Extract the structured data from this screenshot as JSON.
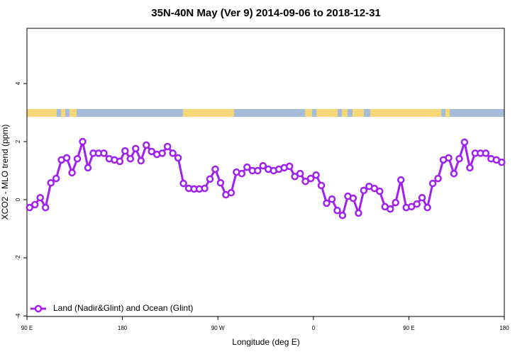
{
  "chart_data": {
    "type": "line",
    "title": "35N-40N May (Ver 9)   2014-09-06 to 2018-12-31",
    "x_label": "Longitude (deg E)",
    "y_label": "XCO2 - MLO trend (ppm)",
    "x": [
      92.5,
      97.5,
      102.5,
      107.5,
      112.5,
      117.5,
      122.5,
      127.5,
      132.5,
      137.5,
      142.5,
      147.5,
      152.5,
      157.5,
      162.5,
      167.5,
      172.5,
      177.5,
      182.5,
      187.5,
      192.5,
      197.5,
      202.5,
      207.5,
      212.5,
      217.5,
      222.5,
      227.5,
      232.5,
      237.5,
      242.5,
      247.5,
      252.5,
      257.5,
      262.5,
      267.5,
      272.5,
      277.5,
      282.5,
      287.5,
      292.5,
      297.5,
      302.5,
      307.5,
      312.5,
      317.5,
      322.5,
      327.5,
      332.5,
      337.5,
      342.5,
      347.5,
      352.5,
      357.5,
      362.5,
      367.5,
      372.5,
      377.5,
      382.5,
      387.5,
      392.5,
      397.5,
      402.5,
      407.5,
      412.5,
      417.5,
      422.5,
      427.5,
      432.5,
      437.5,
      442.5,
      447.5,
      452.5,
      457.5,
      462.5,
      467.5,
      472.5,
      477.5,
      482.5,
      487.5,
      492.5,
      497.5,
      502.5,
      507.5,
      512.5,
      517.5,
      522.5,
      527.5,
      532.5,
      537.5
    ],
    "series": [
      {
        "name": "Land (Nadir&Glint) and Ocean (Glint)",
        "color": "#a020f0",
        "values": [
          -0.27,
          -0.17,
          0.07,
          -0.27,
          0.58,
          0.73,
          1.37,
          1.44,
          0.93,
          1.41,
          2.0,
          1.1,
          1.6,
          1.6,
          1.6,
          1.41,
          1.37,
          1.32,
          1.68,
          1.41,
          1.76,
          1.34,
          1.88,
          1.66,
          1.56,
          1.6,
          1.83,
          1.6,
          1.44,
          0.56,
          0.39,
          0.37,
          0.37,
          0.39,
          0.71,
          1.05,
          0.58,
          0.17,
          0.24,
          0.95,
          0.9,
          1.12,
          1.0,
          1.0,
          1.17,
          1.05,
          1.0,
          1.05,
          1.1,
          1.15,
          0.8,
          0.9,
          0.63,
          0.73,
          0.85,
          0.49,
          -0.12,
          0.02,
          -0.37,
          -0.54,
          0.12,
          0.05,
          -0.46,
          0.32,
          0.46,
          0.39,
          0.29,
          -0.24,
          -0.32,
          -0.1,
          0.68,
          -0.27,
          -0.24,
          -0.15,
          0.07,
          -0.27,
          0.56,
          0.73,
          1.37,
          1.44,
          0.9,
          1.41,
          1.98,
          1.1,
          1.6,
          1.6,
          1.6,
          1.41,
          1.37,
          1.29
        ]
      }
    ],
    "xlim": [
      90,
      540
    ],
    "xticks": [
      {
        "value": 90,
        "label": "90 E"
      },
      180,
      {
        "value": 270,
        "label": "90 W"
      },
      {
        "value": 360,
        "label": "0"
      },
      {
        "value": 450,
        "label": "90 E"
      },
      {
        "value": 540,
        "label": "180"
      }
    ],
    "ylim": [
      -4.02,
      5.9
    ],
    "yticks": [
      -4,
      -2,
      0,
      2,
      4
    ],
    "legend": "bottomleft"
  }
}
